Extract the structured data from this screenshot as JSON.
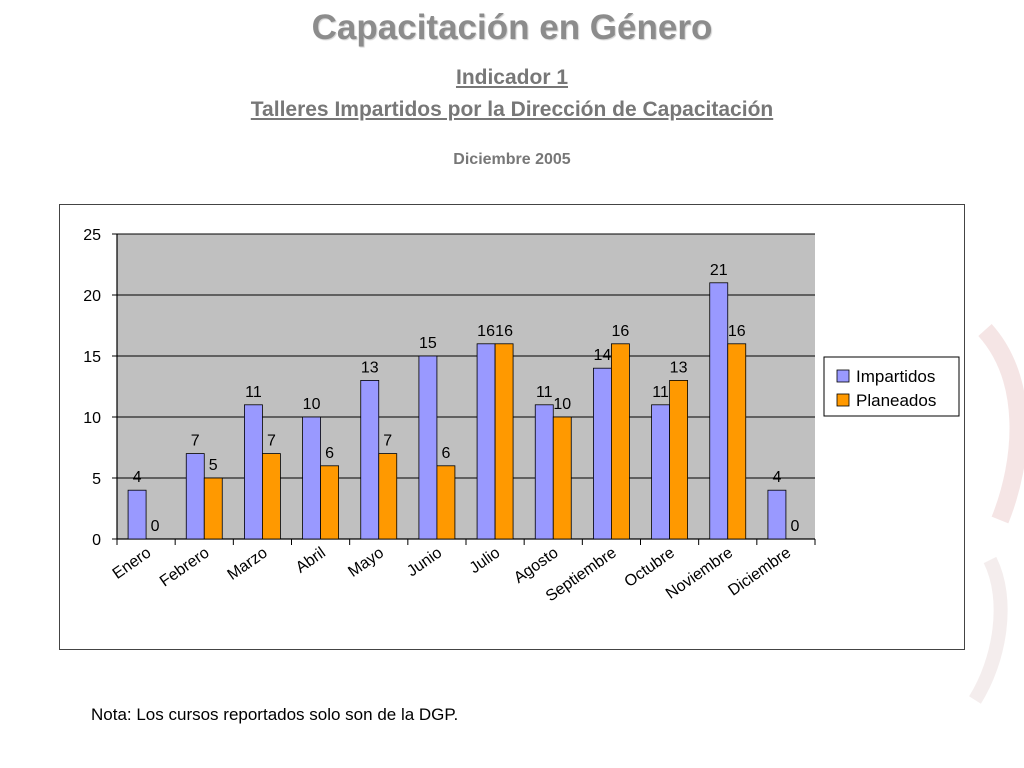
{
  "title": "Capacitación en Género",
  "subtitle_1": "Indicador 1",
  "subtitle_2": "Talleres Impartidos por la Dirección de Capacitación",
  "date_label": "Diciembre 2005",
  "note": "Nota: Los cursos reportados solo son de la DGP.",
  "colors": {
    "impartidos": "#9999ff",
    "planeados": "#ff9900",
    "plot_bg": "#c0c0c0",
    "title": "#8c8c8c"
  },
  "chart_data": {
    "type": "bar",
    "title": "",
    "xlabel": "",
    "ylabel": "",
    "ylim": [
      0,
      25
    ],
    "yticks": [
      0,
      5,
      10,
      15,
      20,
      25
    ],
    "grid": true,
    "legend_position": "right",
    "categories": [
      "Enero",
      "Febrero",
      "Marzo",
      "Abril",
      "Mayo",
      "Junio",
      "Julio",
      "Agosto",
      "Septiembre",
      "Octubre",
      "Noviembre",
      "Diciembre"
    ],
    "series": [
      {
        "name": "Impartidos",
        "color": "#9999ff",
        "values": [
          4,
          7,
          11,
          10,
          13,
          15,
          16,
          11,
          14,
          11,
          21,
          4
        ]
      },
      {
        "name": "Planeados",
        "color": "#ff9900",
        "values": [
          0,
          5,
          7,
          6,
          7,
          6,
          16,
          10,
          16,
          13,
          16,
          0
        ]
      }
    ]
  }
}
